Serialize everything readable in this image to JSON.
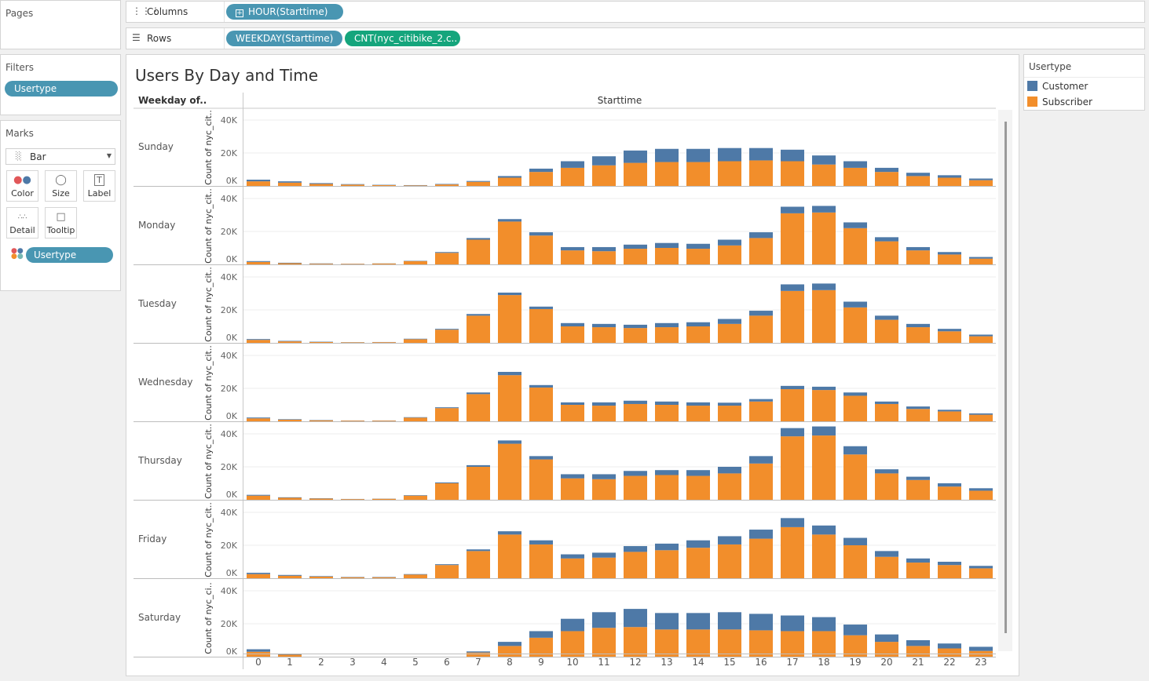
{
  "pages": {
    "title": "Pages"
  },
  "filters": {
    "title": "Filters",
    "pills": [
      "Usertype"
    ]
  },
  "marks": {
    "title": "Marks",
    "type_dropdown": "Bar",
    "buttons": [
      "Color",
      "Size",
      "Label",
      "Detail",
      "Tooltip"
    ],
    "color_pill": "Usertype"
  },
  "shelves": {
    "columns_label": "Columns",
    "columns_pill": "HOUR(Starttime)",
    "rows_label": "Rows",
    "rows_pills": [
      "WEEKDAY(Starttime)",
      "CNT(nyc_citibike_2.c.."
    ]
  },
  "legend": {
    "title": "Usertype",
    "items": [
      {
        "label": "Customer",
        "color": "#4e79a7"
      },
      {
        "label": "Subscriber",
        "color": "#f28e2b"
      }
    ]
  },
  "sheet": {
    "title": "Users By Day and Time",
    "row_header": "Weekday of..",
    "column_header": "Starttime"
  },
  "chart_data": {
    "type": "bar",
    "stacked": true,
    "x_field": "HOUR(Starttime)",
    "categories": [
      0,
      1,
      2,
      3,
      4,
      5,
      6,
      7,
      8,
      9,
      10,
      11,
      12,
      13,
      14,
      15,
      16,
      17,
      18,
      19,
      20,
      21,
      22,
      23
    ],
    "y_axis_label": "Count of nyc_cit..",
    "y_axis_labels": [
      "Count of nyc_cit..",
      "Count of nyc_cit..",
      "Count of nyc_cit..",
      "Count of nyc_cit..",
      "Count of nyc_cit..",
      "Count of nyc_cit..",
      "Count of nyc_ci.."
    ],
    "y_ticks": [
      "0K",
      "20K",
      "40K"
    ],
    "ylim": [
      0,
      40000
    ],
    "colors": {
      "Customer": "#4e79a7",
      "Subscriber": "#f28e2b"
    },
    "panes": [
      {
        "day": "Sunday",
        "Subscriber": [
          2800,
          2000,
          1200,
          800,
          500,
          300,
          900,
          2500,
          5000,
          8500,
          11000,
          12500,
          14000,
          14500,
          14500,
          15000,
          15500,
          15000,
          13000,
          11000,
          8500,
          6000,
          5000,
          3500
        ],
        "Customer": [
          1000,
          800,
          500,
          300,
          200,
          200,
          300,
          500,
          1000,
          2000,
          4000,
          5500,
          7500,
          8000,
          8000,
          8000,
          7500,
          7000,
          5500,
          4000,
          2500,
          2000,
          1500,
          1000
        ]
      },
      {
        "day": "Monday",
        "Subscriber": [
          1500,
          700,
          400,
          300,
          500,
          2000,
          7000,
          15000,
          26000,
          17500,
          8500,
          8000,
          9500,
          10000,
          9500,
          11500,
          16000,
          31000,
          31500,
          22000,
          14000,
          8500,
          6000,
          3500
        ],
        "Customer": [
          500,
          300,
          200,
          100,
          100,
          200,
          500,
          1000,
          1500,
          2000,
          2000,
          2500,
          2500,
          3000,
          3000,
          3500,
          3500,
          4000,
          4000,
          3500,
          2500,
          2000,
          1500,
          1000
        ]
      },
      {
        "day": "Tuesday",
        "Subscriber": [
          1800,
          900,
          500,
          300,
          400,
          2200,
          8000,
          16500,
          29000,
          20500,
          10000,
          9500,
          9000,
          9500,
          10000,
          11500,
          16500,
          31500,
          32000,
          21500,
          14000,
          9500,
          7000,
          4000
        ],
        "Customer": [
          500,
          300,
          200,
          100,
          100,
          300,
          500,
          1000,
          1500,
          1500,
          2000,
          2000,
          2000,
          2500,
          2500,
          3000,
          3000,
          4000,
          4000,
          3500,
          2500,
          2000,
          1500,
          1000
        ]
      },
      {
        "day": "Wednesday",
        "Subscriber": [
          1800,
          1000,
          600,
          400,
          400,
          2200,
          8000,
          16500,
          28000,
          20500,
          10000,
          9500,
          10500,
          10000,
          9500,
          9500,
          12000,
          19500,
          19000,
          15500,
          10500,
          7500,
          6000,
          4000
        ],
        "Customer": [
          500,
          300,
          200,
          100,
          100,
          300,
          500,
          1000,
          2000,
          1500,
          1500,
          2000,
          2000,
          2000,
          2000,
          1800,
          1500,
          2000,
          2000,
          2000,
          1500,
          1500,
          1000,
          800
        ]
      },
      {
        "day": "Thursday",
        "Subscriber": [
          2500,
          1200,
          700,
          400,
          600,
          2500,
          10000,
          20000,
          34000,
          24500,
          13000,
          12500,
          14500,
          15000,
          14500,
          16000,
          22000,
          38500,
          39000,
          27500,
          16000,
          12000,
          8000,
          5500
        ],
        "Customer": [
          500,
          300,
          200,
          100,
          100,
          300,
          500,
          1000,
          2000,
          2000,
          2500,
          3000,
          3000,
          3000,
          3500,
          4000,
          4500,
          5000,
          5500,
          5000,
          2500,
          2000,
          2000,
          1500
        ]
      },
      {
        "day": "Friday",
        "Subscriber": [
          2500,
          1500,
          1000,
          600,
          600,
          2200,
          8000,
          16500,
          26500,
          20500,
          12000,
          12500,
          16000,
          17000,
          18500,
          20500,
          24000,
          31000,
          26500,
          20000,
          13000,
          9500,
          8000,
          6000
        ],
        "Customer": [
          800,
          500,
          300,
          200,
          200,
          300,
          500,
          1000,
          2000,
          2500,
          2500,
          3000,
          3500,
          4000,
          4500,
          5000,
          5500,
          5500,
          5500,
          4500,
          3500,
          2500,
          2000,
          1500
        ]
      },
      {
        "day": "Saturday",
        "Subscriber": [
          3000,
          1200,
          0,
          0,
          0,
          0,
          0,
          2500,
          6500,
          11500,
          15500,
          17500,
          18000,
          16500,
          16500,
          16500,
          16000,
          15500,
          15500,
          13000,
          9000,
          6500,
          5000,
          3500
        ],
        "Customer": [
          1500,
          500,
          0,
          0,
          0,
          0,
          0,
          700,
          2500,
          4000,
          7500,
          9500,
          11000,
          10000,
          10000,
          10500,
          10000,
          9500,
          8500,
          6500,
          4500,
          3500,
          3000,
          2500
        ]
      }
    ]
  }
}
